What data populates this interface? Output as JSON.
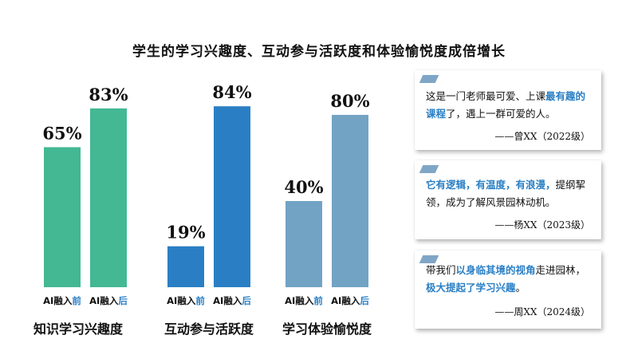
{
  "chart_data": {
    "type": "bar",
    "title": "学生的学习兴趣度、互动参与活跃度和体验愉悦度成倍增长",
    "groups": [
      {
        "name": "知识学习兴趣度",
        "bars": [
          {
            "prefix": "AI融入",
            "suffix": "前",
            "value": 65,
            "display": "65%",
            "color": "#43b893"
          },
          {
            "prefix": "AI融入",
            "suffix": "后",
            "value": 83,
            "display": "83%",
            "color": "#43b893"
          }
        ]
      },
      {
        "name": "互动参与活跃度",
        "bars": [
          {
            "prefix": "AI融入",
            "suffix": "前",
            "value": 19,
            "display": "19%",
            "color": "#2a7fc4"
          },
          {
            "prefix": "AI融入",
            "suffix": "后",
            "value": 84,
            "display": "84%",
            "color": "#2a7fc4"
          }
        ]
      },
      {
        "name": "学习体验愉悦度",
        "bars": [
          {
            "prefix": "AI融入",
            "suffix": "前",
            "value": 40,
            "display": "40%",
            "color": "#72a3c4"
          },
          {
            "prefix": "AI融入",
            "suffix": "后",
            "value": 80,
            "display": "80%",
            "color": "#72a3c4"
          }
        ]
      }
    ],
    "ylim": [
      0,
      100
    ],
    "grid": false,
    "legend": "none"
  },
  "quotes": [
    {
      "segments": [
        {
          "text": "这是一门老师最可爱、上课",
          "highlight": false
        },
        {
          "text": "最有趣的课程",
          "highlight": true
        },
        {
          "text": "了，遇上一群可爱的人。",
          "highlight": false
        }
      ],
      "author": "——曾XX（2022级）"
    },
    {
      "segments": [
        {
          "text": "它有逻辑，有温度，有浪漫，",
          "highlight": true
        },
        {
          "text": "提纲挈领，成为了解风景园林动机。",
          "highlight": false
        }
      ],
      "author": "——杨XX（2023级）"
    },
    {
      "segments": [
        {
          "text": "带我们",
          "highlight": false
        },
        {
          "text": "以身临其境的视角",
          "highlight": true
        },
        {
          "text": "走进园林，",
          "highlight": false
        },
        {
          "text": "极大提起了学习兴趣",
          "highlight": true
        },
        {
          "text": "。",
          "highlight": false
        }
      ],
      "author": "——周XX（2024级）"
    }
  ],
  "colors": {
    "accent": "#2a7fc4",
    "tag": "#7fa6c6"
  }
}
